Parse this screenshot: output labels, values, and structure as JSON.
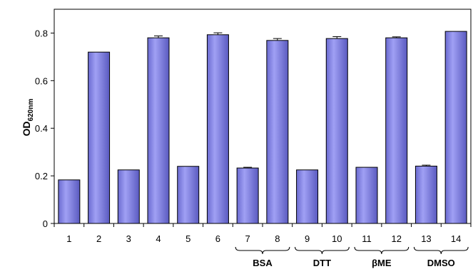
{
  "chart_data": {
    "type": "bar",
    "categories": [
      "1",
      "2",
      "3",
      "4",
      "5",
      "6",
      "7",
      "8",
      "9",
      "10",
      "11",
      "12",
      "13",
      "14"
    ],
    "values": [
      0.183,
      0.72,
      0.225,
      0.78,
      0.24,
      0.793,
      0.233,
      0.769,
      0.225,
      0.777,
      0.236,
      0.78,
      0.241,
      0.807
    ],
    "errors": [
      0.0,
      0.0,
      0.0,
      0.008,
      0.0,
      0.008,
      0.003,
      0.008,
      0.0,
      0.008,
      0.0,
      0.004,
      0.004,
      0.0
    ],
    "ylim": [
      0,
      0.9
    ],
    "yticks": [
      0,
      0.2,
      0.4,
      0.6,
      0.8
    ],
    "ytick_labels": [
      "0",
      "0.2",
      "0.4",
      "0.6",
      "0.8"
    ],
    "ylabel_main": "OD",
    "ylabel_sub": "620nm",
    "xlabel": "",
    "grid": false,
    "bar_color": "#8080e0",
    "bar_edge_color": "#000000",
    "groups": [
      {
        "label": "BSA",
        "categories": [
          "7",
          "8"
        ]
      },
      {
        "label": "DTT",
        "categories": [
          "9",
          "10"
        ]
      },
      {
        "label": "βME",
        "categories": [
          "11",
          "12"
        ]
      },
      {
        "label": "DMSO",
        "categories": [
          "13",
          "14"
        ]
      }
    ]
  }
}
